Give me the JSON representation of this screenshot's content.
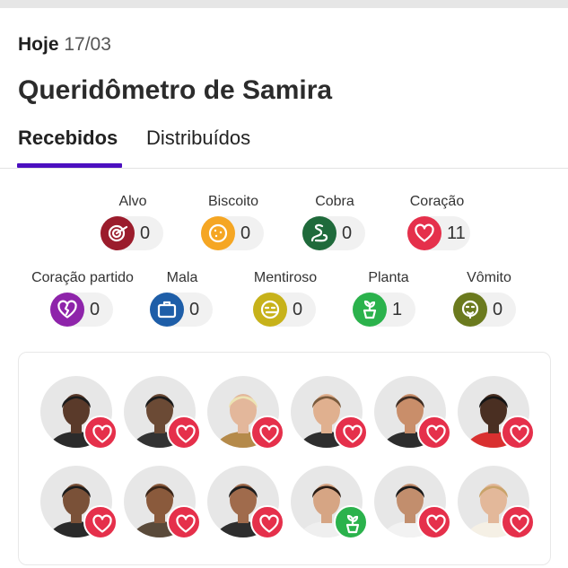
{
  "header": {
    "day_label": "Hoje",
    "date": "17/03",
    "title": "Queridômetro de Samira"
  },
  "tabs": [
    {
      "label": "Recebidos",
      "active": true
    },
    {
      "label": "Distribuídos",
      "active": false
    }
  ],
  "colors": {
    "accent": "#4b0fbf",
    "heart": "#e5304b",
    "plant": "#2bb24c",
    "pill_bg": "#f1f1f1"
  },
  "reactions": [
    {
      "label": "Alvo",
      "count": "0",
      "icon": "target-icon",
      "color": "#9b1c2c"
    },
    {
      "label": "Biscoito",
      "count": "0",
      "icon": "cookie-icon",
      "color": "#f5a623"
    },
    {
      "label": "Cobra",
      "count": "0",
      "icon": "snake-icon",
      "color": "#1f6a3b"
    },
    {
      "label": "Coração",
      "count": "11",
      "icon": "heart-icon",
      "color": "#e5304b"
    },
    {
      "label": "Coração partido",
      "count": "0",
      "icon": "broken-heart-icon",
      "color": "#8e24aa"
    },
    {
      "label": "Mala",
      "count": "0",
      "icon": "suitcase-icon",
      "color": "#1e5ea8"
    },
    {
      "label": "Mentiroso",
      "count": "0",
      "icon": "liar-face-icon",
      "color": "#c7b21a"
    },
    {
      "label": "Planta",
      "count": "1",
      "icon": "plant-icon",
      "color": "#2bb24c"
    },
    {
      "label": "Vômito",
      "count": "0",
      "icon": "vomit-face-icon",
      "color": "#6b7a1e"
    }
  ],
  "participants": [
    {
      "badge": "heart-icon",
      "skin": "#5a3a2a",
      "hair": "#1c1c1c",
      "shirt": "#2b2b2b"
    },
    {
      "badge": "heart-icon",
      "skin": "#6b4a35",
      "hair": "#1b1b1b",
      "shirt": "#333"
    },
    {
      "badge": "heart-icon",
      "skin": "#e3b79b",
      "hair": "#ece3b3",
      "shirt": "#b58a4a"
    },
    {
      "badge": "heart-icon",
      "skin": "#e0b08f",
      "hair": "#7a5a3c",
      "shirt": "#2e2e2e"
    },
    {
      "badge": "heart-icon",
      "skin": "#c98e6a",
      "hair": "#3e2c22",
      "shirt": "#2d2d2d"
    },
    {
      "badge": "heart-icon",
      "skin": "#4a2f22",
      "hair": "#151515",
      "shirt": "#d93030"
    },
    {
      "badge": "heart-icon",
      "skin": "#7a5138",
      "hair": "#1c1c1c",
      "shirt": "#2a2a2a"
    },
    {
      "badge": "heart-icon",
      "skin": "#8a5a3c",
      "hair": "#3a2518",
      "shirt": "#5a4a3a"
    },
    {
      "badge": "heart-icon",
      "skin": "#a06b4c",
      "hair": "#1e1e1e",
      "shirt": "#2e2e2e"
    },
    {
      "badge": "plant-icon",
      "skin": "#d6a584",
      "hair": "#2b1d14",
      "shirt": "#efefef"
    },
    {
      "badge": "heart-icon",
      "skin": "#c28e6d",
      "hair": "#1a1a1a",
      "shirt": "#f2f2f2"
    },
    {
      "badge": "heart-icon",
      "skin": "#e3b89a",
      "hair": "#c9a36a",
      "shirt": "#f5f0e5"
    }
  ]
}
